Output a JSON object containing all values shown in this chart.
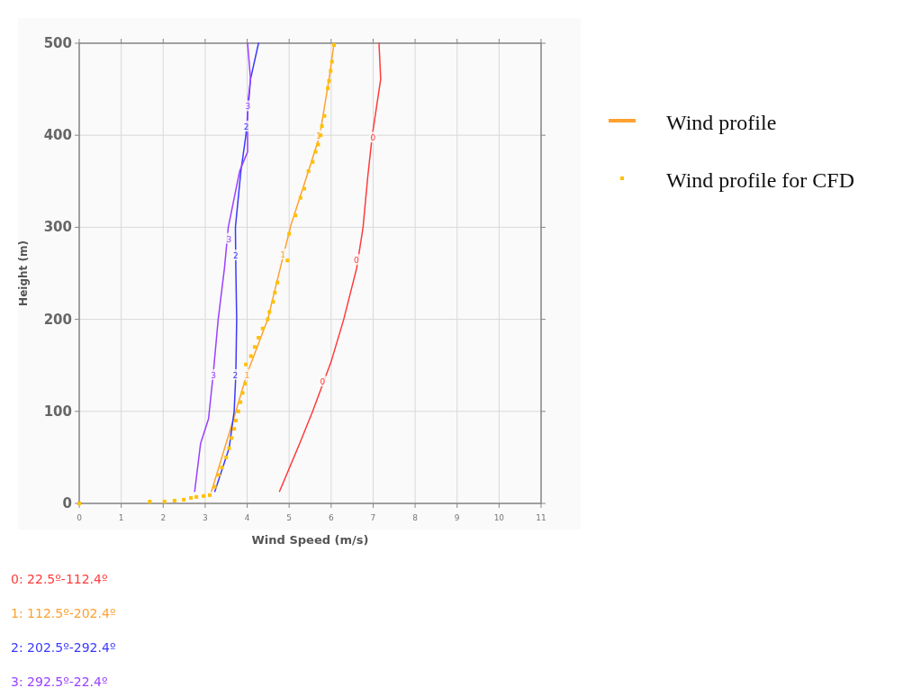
{
  "chart_data": {
    "type": "line",
    "xlabel": "Wind Speed (m/s)",
    "ylabel": "Height (m)",
    "xlim": [
      0,
      11
    ],
    "xticks": [
      0,
      1,
      2,
      3,
      4,
      5,
      6,
      7,
      8,
      9,
      10,
      11
    ],
    "ylim": [
      0,
      500
    ],
    "yticks": [
      0,
      100,
      200,
      300,
      400,
      500
    ],
    "grid": true,
    "legend": "right",
    "line_style": "solid",
    "series": [
      {
        "name": "0: 22.5º-112.4º",
        "color": "#ff3b3b",
        "marker": "none",
        "x": [
          4.77,
          5.25,
          5.56,
          6.0,
          6.3,
          6.61,
          6.76,
          6.87,
          6.98,
          7.18,
          7.14
        ],
        "values": [
          13,
          65,
          100,
          154,
          200,
          256,
          300,
          354,
          400,
          461,
          500
        ]
      },
      {
        "name": "1: 112.5º-202.4º",
        "color": "#ffa030",
        "marker": "none",
        "x": [
          3.15,
          3.73,
          3.99,
          4.49,
          4.79,
          5.04,
          5.46,
          5.73,
          5.95,
          6.07
        ],
        "values": [
          13,
          100,
          140,
          200,
          256,
          302,
          361,
          400,
          461,
          500
        ]
      },
      {
        "name": "2: 202.5º-292.4º",
        "color": "#3a3aff",
        "marker": "none",
        "x": [
          3.23,
          3.57,
          3.69,
          3.73,
          3.75,
          3.73,
          3.72,
          3.85,
          3.97,
          4.08,
          4.27
        ],
        "values": [
          13,
          60,
          100,
          140,
          200,
          256,
          300,
          361,
          400,
          461,
          500
        ]
      },
      {
        "name": "3: 292.5º-22.4º",
        "color": "#9b40ff",
        "marker": "none",
        "x": [
          2.75,
          2.89,
          3.08,
          3.19,
          3.31,
          3.46,
          3.55,
          3.82,
          4.01,
          4.01,
          4.08,
          4.01
        ],
        "values": [
          13,
          65,
          92,
          140,
          200,
          256,
          300,
          361,
          382,
          433,
          461,
          500
        ]
      },
      {
        "name": "Wind profile for CFD",
        "type": "scatter",
        "color": "#ffc000",
        "marker": "square",
        "x": [
          0,
          1.68,
          2.03,
          2.27,
          2.49,
          2.66,
          2.79,
          2.96,
          3.11,
          3.23,
          3.32,
          3.4,
          3.5,
          3.57,
          3.63,
          3.69,
          3.73,
          3.79,
          3.84,
          3.89,
          3.95,
          3.97,
          4.09,
          4.18,
          4.27,
          4.37,
          4.49,
          4.53,
          4.62,
          4.66,
          4.72,
          4.96,
          5.0,
          5.15,
          5.27,
          5.36,
          5.46,
          5.56,
          5.63,
          5.69,
          5.75,
          5.78,
          5.84,
          5.92,
          5.95,
          5.99,
          6.02,
          6.07
        ],
        "values": [
          0,
          2,
          2,
          3,
          4,
          6,
          7,
          8,
          9,
          18,
          31,
          39,
          50,
          60,
          71,
          81,
          90,
          100,
          110,
          120,
          130,
          151,
          160,
          170,
          180,
          190,
          200,
          208,
          219,
          229,
          240,
          264,
          293,
          313,
          332,
          342,
          361,
          371,
          382,
          390,
          400,
          410,
          421,
          451,
          459,
          470,
          480,
          498
        ]
      }
    ],
    "annotations": [
      "Wind profile",
      {
        "text": "0",
        "x": 5.8,
        "y": 133
      },
      {
        "text": "0",
        "x": 6.6,
        "y": 265
      },
      {
        "text": "0",
        "x": 7.0,
        "y": 398
      },
      {
        "text": "1",
        "x": 4.0,
        "y": 140
      },
      {
        "text": "1",
        "x": 4.85,
        "y": 271
      },
      {
        "text": "1",
        "x": 5.7,
        "y": 400
      },
      {
        "text": "2",
        "x": 3.72,
        "y": 140
      },
      {
        "text": "2",
        "x": 3.73,
        "y": 270
      },
      {
        "text": "2",
        "x": 3.98,
        "y": 410
      },
      {
        "text": "3",
        "x": 3.2,
        "y": 140
      },
      {
        "text": "3",
        "x": 3.57,
        "y": 288
      },
      {
        "text": "3",
        "x": 4.02,
        "y": 432
      }
    ]
  }
}
